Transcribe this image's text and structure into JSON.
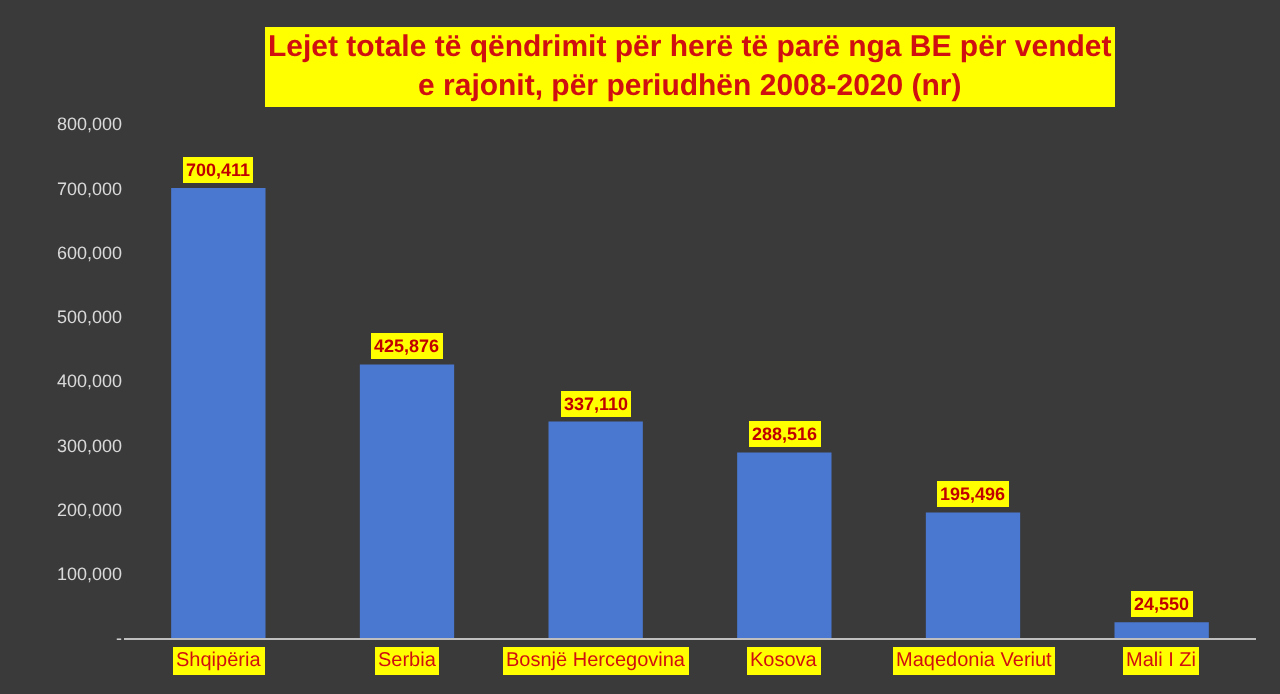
{
  "chart_data": {
    "type": "bar",
    "title": "Lejet totale të qëndrimit për herë të parë nga BE për vendet\ne rajonit, për periudhën 2008-2020 (nr)",
    "categories": [
      "Shqipëria",
      "Serbia",
      "Bosnjë Hercegovina",
      "Kosova",
      "Maqedonia Veriut",
      "Mali I Zi"
    ],
    "values": [
      700411,
      425876,
      337110,
      288516,
      195496,
      24550
    ],
    "color": "#4a78d0",
    "ylim": [
      0,
      800000
    ],
    "yticks": [
      {
        "value": 0,
        "label": "-"
      },
      {
        "value": 100000,
        "label": "100,000"
      },
      {
        "value": 200000,
        "label": "200,000"
      },
      {
        "value": 300000,
        "label": "300,000"
      },
      {
        "value": 400000,
        "label": "400,000"
      },
      {
        "value": 500000,
        "label": "500,000"
      },
      {
        "value": 600000,
        "label": "600,000"
      },
      {
        "value": 700000,
        "label": "700,000"
      },
      {
        "value": 800000,
        "label": "800,000"
      }
    ],
    "value_labels": [
      "700,411",
      "425,876",
      "337,110",
      "288,516",
      "195,496",
      "24,550"
    ],
    "grid": false
  }
}
